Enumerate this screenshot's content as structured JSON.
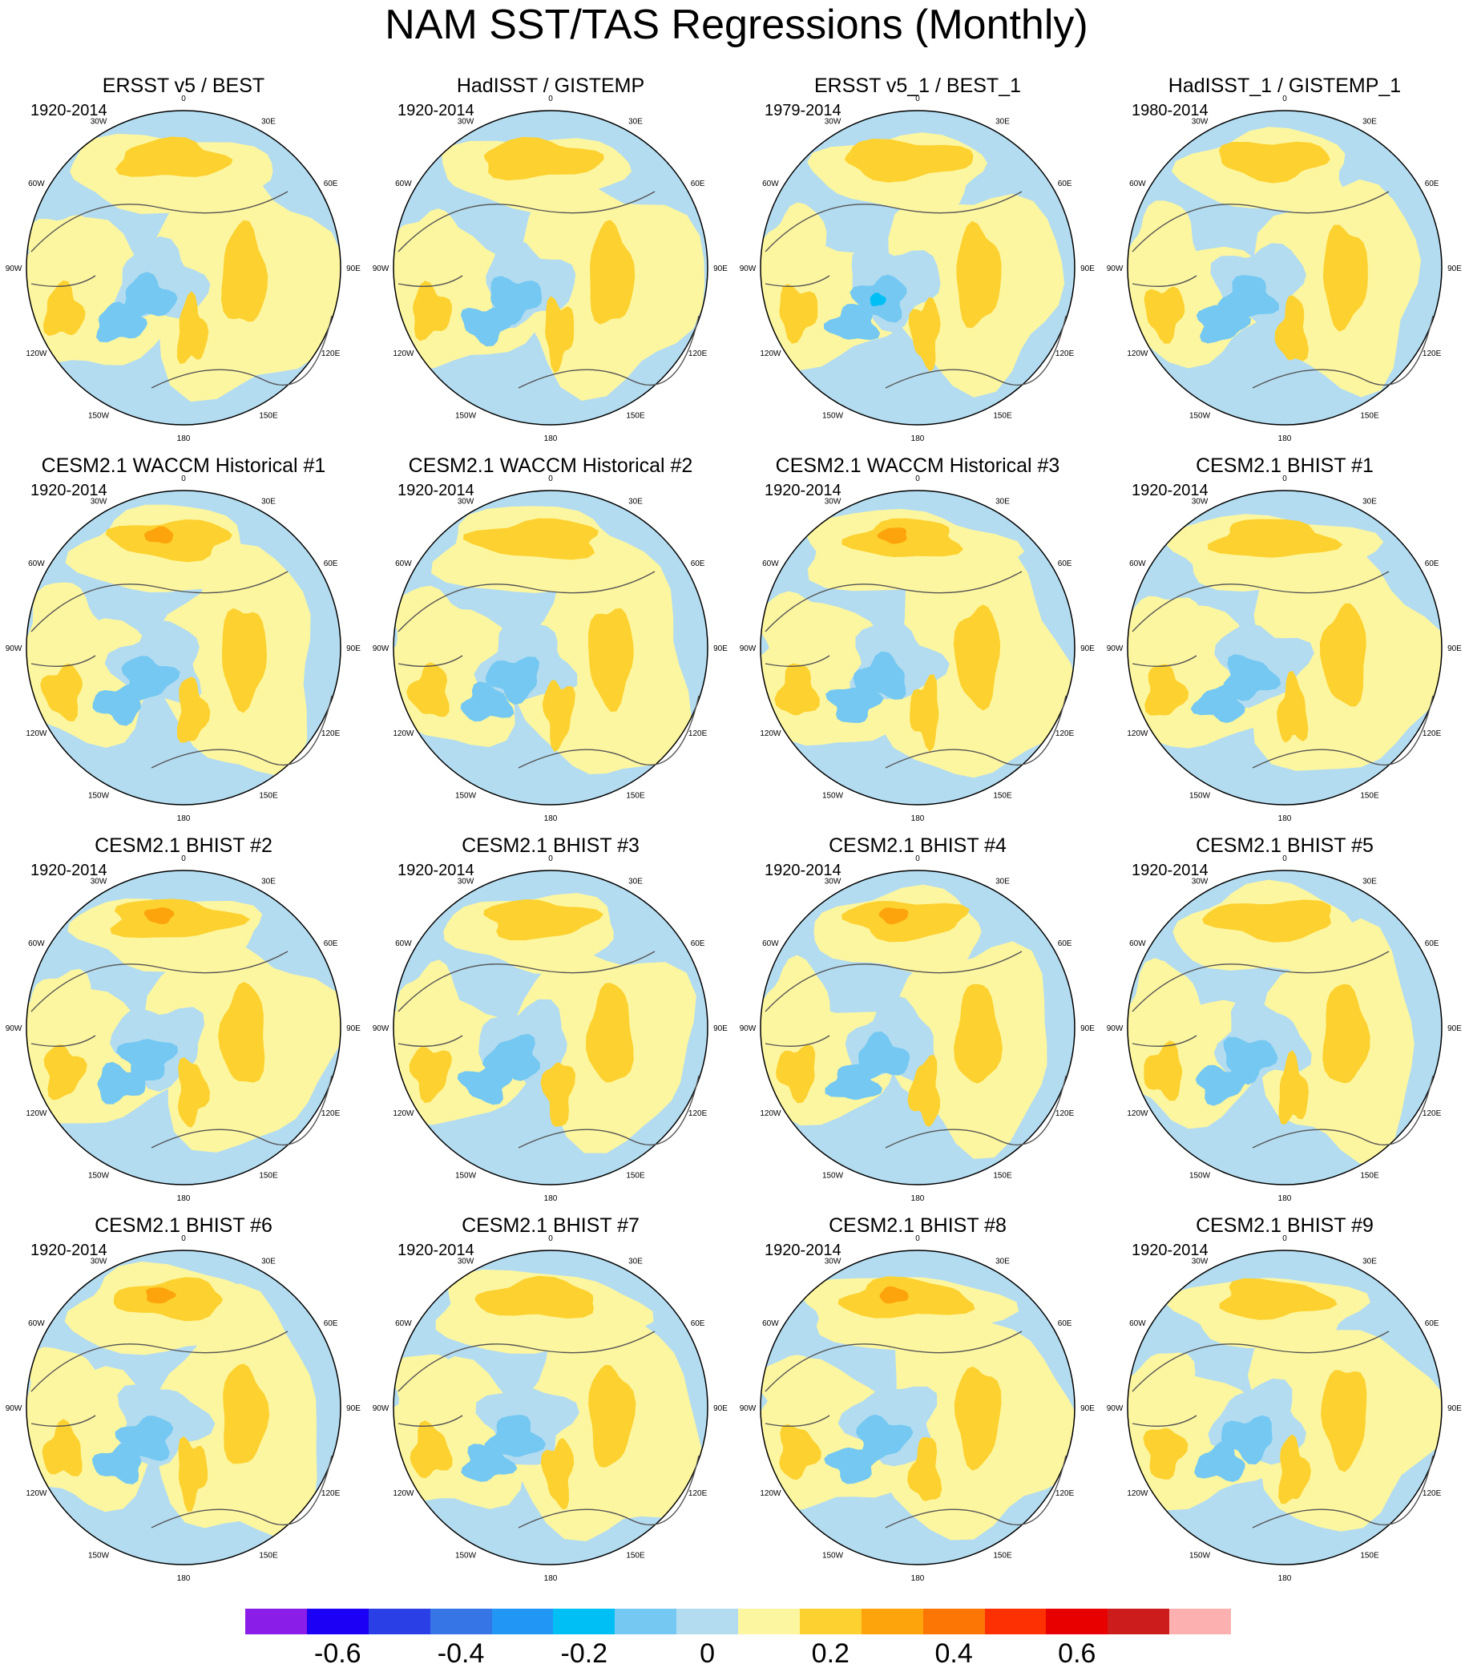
{
  "title": "NAM SST/TAS Regressions (Monthly)",
  "lon_labels": [
    "180",
    "150E",
    "120E",
    "90E",
    "60E",
    "30E",
    "0",
    "30W",
    "60W",
    "90W",
    "120W",
    "150W"
  ],
  "panels": [
    {
      "title": "ERSST v5 / BEST",
      "period": "1920-2014",
      "variant": 0
    },
    {
      "title": "HadISST / GISTEMP",
      "period": "1920-2014",
      "variant": 1
    },
    {
      "title": "ERSST v5_1 / BEST_1",
      "period": "1979-2014",
      "variant": 2
    },
    {
      "title": "HadISST_1 / GISTEMP_1",
      "period": "1980-2014",
      "variant": 3
    },
    {
      "title": "CESM2.1 WACCM Historical #1",
      "period": "1920-2014",
      "variant": 4
    },
    {
      "title": "CESM2.1 WACCM Historical #2",
      "period": "1920-2014",
      "variant": 5
    },
    {
      "title": "CESM2.1 WACCM Historical #3",
      "period": "1920-2014",
      "variant": 6
    },
    {
      "title": "CESM2.1 BHIST #1",
      "period": "1920-2014",
      "variant": 7
    },
    {
      "title": "CESM2.1 BHIST #2",
      "period": "1920-2014",
      "variant": 8
    },
    {
      "title": "CESM2.1 BHIST #3",
      "period": "1920-2014",
      "variant": 9
    },
    {
      "title": "CESM2.1 BHIST #4",
      "period": "1920-2014",
      "variant": 10
    },
    {
      "title": "CESM2.1 BHIST #5",
      "period": "1920-2014",
      "variant": 11
    },
    {
      "title": "CESM2.1 BHIST #6",
      "period": "1920-2014",
      "variant": 12
    },
    {
      "title": "CESM2.1 BHIST #7",
      "period": "1920-2014",
      "variant": 13
    },
    {
      "title": "CESM2.1 BHIST #8",
      "period": "1920-2014",
      "variant": 14
    },
    {
      "title": "CESM2.1 BHIST #9",
      "period": "1920-2014",
      "variant": 15
    }
  ],
  "colorbar": {
    "colors": [
      "#8a1de8",
      "#1b00f5",
      "#2b3fe6",
      "#3575e6",
      "#2196f5",
      "#00bff5",
      "#74c8f2",
      "#b3dcf0",
      "#fdf6a0",
      "#fdd12f",
      "#fda30b",
      "#fc7606",
      "#fc3002",
      "#e80000",
      "#cc1c1c",
      "#fdb0b0"
    ],
    "labels": [
      {
        "value": -0.6,
        "text": "-0.6"
      },
      {
        "value": -0.4,
        "text": "-0.4"
      },
      {
        "value": -0.2,
        "text": "-0.2"
      },
      {
        "value": 0,
        "text": "0"
      },
      {
        "value": 0.2,
        "text": "0.2"
      },
      {
        "value": 0.4,
        "text": "0.4"
      },
      {
        "value": 0.6,
        "text": "0.6"
      }
    ],
    "min": -0.75,
    "max": 0.85
  }
}
